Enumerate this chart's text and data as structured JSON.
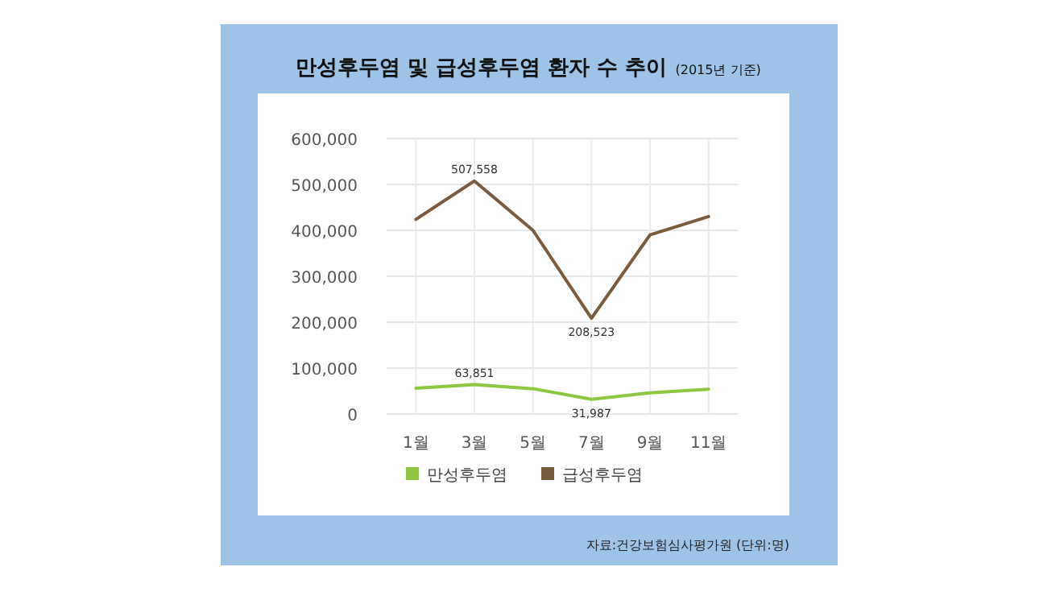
{
  "chart_data": {
    "type": "line",
    "title": "만성후두염 및 급성후두염 환자 수 추이",
    "subtitle": "(2015년 기준)",
    "categories": [
      "1월",
      "3월",
      "5월",
      "7월",
      "9월",
      "11월"
    ],
    "series": [
      {
        "name": "만성후두염",
        "color": "#8dc63f",
        "values": [
          56000,
          63851,
          55000,
          31987,
          46000,
          54000
        ],
        "value_labels": [
          null,
          "63,851",
          null,
          "31,987",
          null,
          null
        ]
      },
      {
        "name": "급성후두염",
        "color": "#7b5b3e",
        "values": [
          424000,
          507558,
          400000,
          208523,
          390000,
          430000
        ],
        "value_labels": [
          null,
          "507,558",
          null,
          "208,523",
          null,
          null
        ]
      }
    ],
    "ylim": [
      0,
      600000
    ],
    "yticks": [
      {
        "value": 0,
        "label": "0"
      },
      {
        "value": 100000,
        "label": "100,000"
      },
      {
        "value": 200000,
        "label": "200,000"
      },
      {
        "value": 300000,
        "label": "300,000"
      },
      {
        "value": 400000,
        "label": "400,000"
      },
      {
        "value": 500000,
        "label": "500,000"
      },
      {
        "value": 600000,
        "label": "600,000"
      }
    ],
    "grid": true,
    "legend": "bottom",
    "marker": "none",
    "line_style": "solid",
    "annotations": [
      "자료:건강보험심사평가원 (단위:명)"
    ]
  }
}
